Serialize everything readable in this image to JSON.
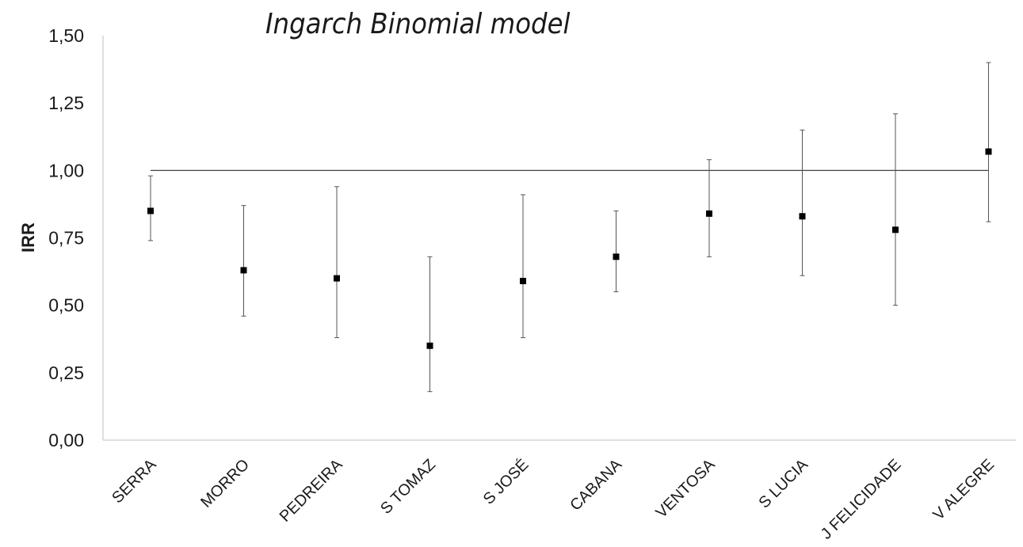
{
  "chart_data": {
    "type": "scatter",
    "title": "Ingarch Binomial model",
    "xlabel": "",
    "ylabel": "IRR",
    "ylim": [
      0,
      1.5
    ],
    "yticks": [
      "0,00",
      "0,25",
      "0,50",
      "0,75",
      "1,00",
      "1,25",
      "1,50"
    ],
    "reference_line": 1.0,
    "grid": false,
    "categories": [
      "SERRA",
      "MORRO",
      "PEDREIRA",
      "S TOMAZ",
      "S JOSÉ",
      "CABANA",
      "VENTOSA",
      "S LUCIA",
      "J FELICIDADE",
      "V ALEGRE"
    ],
    "series": [
      {
        "values": [
          0.85,
          0.63,
          0.6,
          0.35,
          0.59,
          0.68,
          0.84,
          0.83,
          0.78,
          1.07
        ],
        "lower": [
          0.74,
          0.46,
          0.38,
          0.18,
          0.38,
          0.55,
          0.68,
          0.61,
          0.5,
          0.81
        ],
        "upper": [
          0.98,
          0.87,
          0.94,
          0.68,
          0.91,
          0.85,
          1.04,
          1.15,
          1.21,
          1.4
        ]
      }
    ]
  }
}
